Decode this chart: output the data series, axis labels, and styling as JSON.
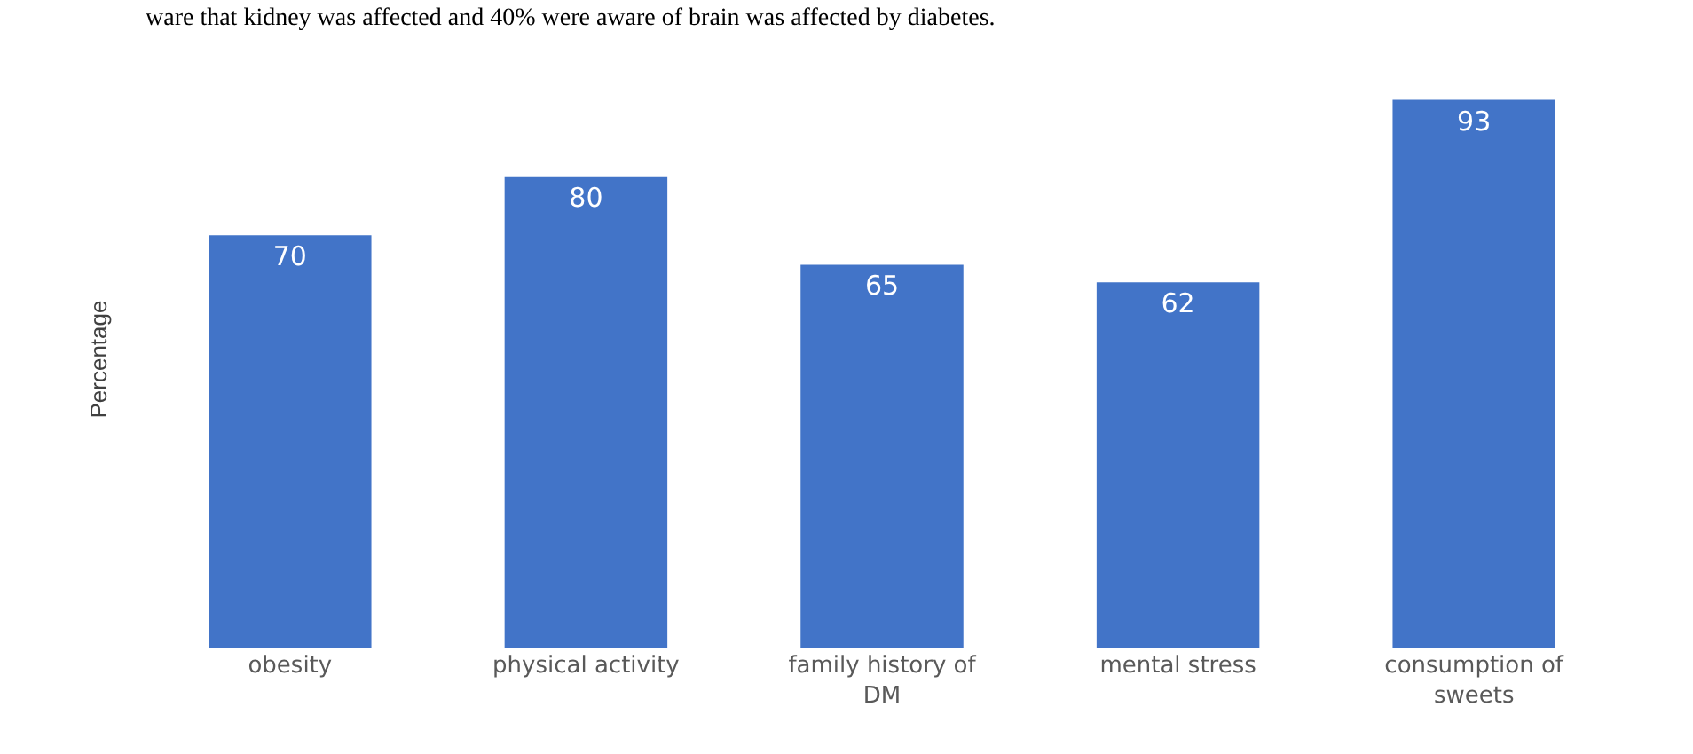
{
  "chart_data": {
    "type": "bar",
    "ylabel": "Percentage",
    "categories": [
      "obesity",
      "physical activity",
      "family history of DM",
      "mental stress",
      "consumption of sweets"
    ],
    "values": [
      70,
      80,
      65,
      62,
      93
    ],
    "color": "#4274c8",
    "data_labels": true,
    "legend": false,
    "annotations": [
      "ware that kidney was affected and 40% were aware of brain was affected by diabetes."
    ]
  }
}
